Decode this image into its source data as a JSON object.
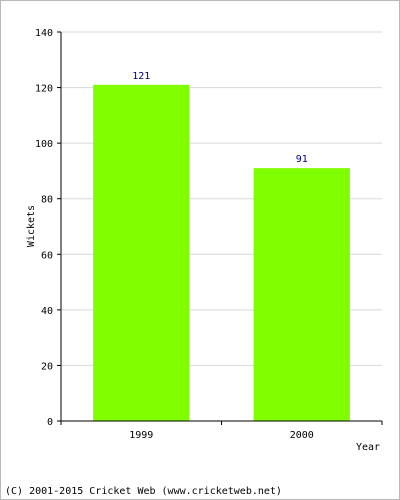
{
  "chart_data": {
    "type": "bar",
    "categories": [
      "1999",
      "2000"
    ],
    "values": [
      121,
      91
    ],
    "data_labels": [
      "121",
      "91"
    ],
    "title": "",
    "xlabel": "Year",
    "ylabel": "Wickets",
    "ylim": [
      0,
      140
    ],
    "yticks": [
      "0",
      "20",
      "40",
      "60",
      "80",
      "100",
      "120",
      "140"
    ],
    "grid": true,
    "bar_color": "#80ff00"
  },
  "footer": {
    "copyright": "(C) 2001-2015 Cricket Web (www.cricketweb.net)"
  }
}
